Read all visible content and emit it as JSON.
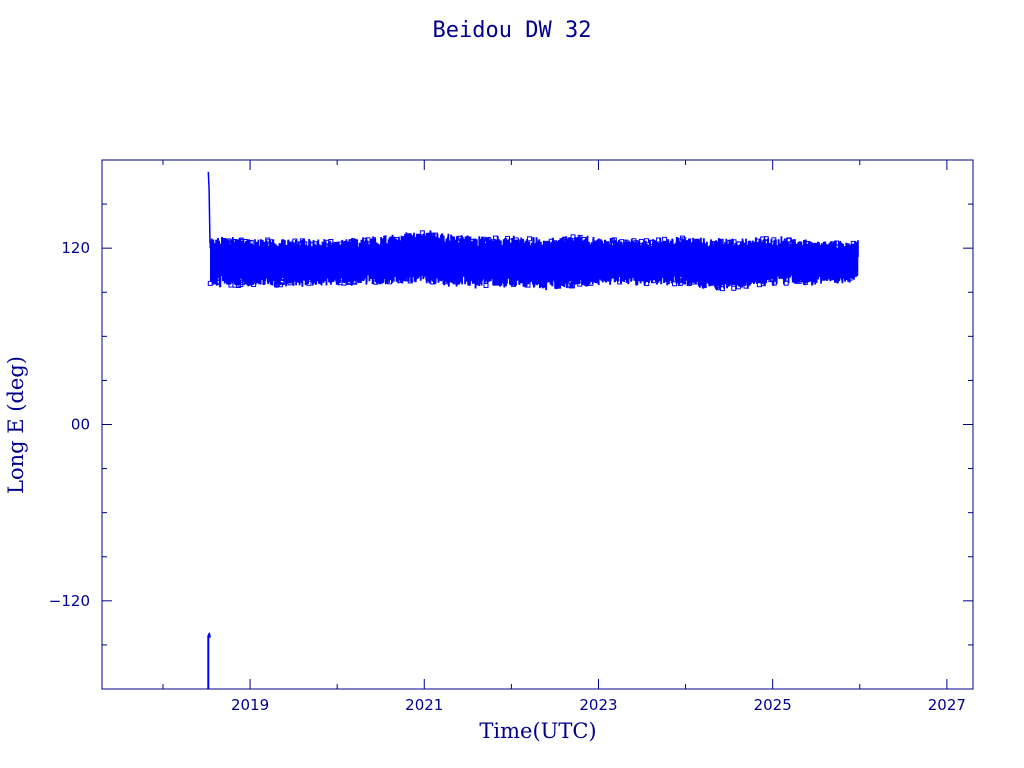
{
  "chart_data": {
    "type": "line",
    "title": "Beidou DW 32",
    "xlabel": "Time(UTC)",
    "ylabel": "Long E (deg)",
    "xlim": [
      2017.3,
      2027.3
    ],
    "ylim": [
      -180,
      180
    ],
    "x_ticks": [
      {
        "value": 2019,
        "label": "2019"
      },
      {
        "value": 2021,
        "label": "2021"
      },
      {
        "value": 2023,
        "label": "2023"
      },
      {
        "value": 2025,
        "label": "2025"
      },
      {
        "value": 2027,
        "label": "2027"
      }
    ],
    "x_minor_ticks": [
      2018,
      2020,
      2022,
      2024,
      2026
    ],
    "y_ticks": [
      {
        "value": 120,
        "label": "120"
      },
      {
        "value": 0,
        "label": "00"
      },
      {
        "value": -120,
        "label": "−120"
      }
    ],
    "y_minor_ticks": [
      150,
      90,
      60,
      30,
      -30,
      -60,
      -90,
      -150
    ],
    "grid": false,
    "legend": "none",
    "series": [
      {
        "color": "#0000ff",
        "initial_segment": [
          [
            2018.52,
            172
          ],
          [
            2018.53,
            160
          ],
          [
            2018.54,
            123
          ]
        ],
        "early_segment": [
          [
            2018.52,
            -180
          ],
          [
            2018.52,
            -144
          ],
          [
            2018.53,
            -143
          ],
          [
            2018.54,
            -145
          ],
          [
            2018.53,
            -142
          ]
        ],
        "band": {
          "x_range": [
            2018.54,
            2025.98
          ],
          "envelope_upper": [
            [
              2018.55,
              126
            ],
            [
              2019.0,
              126
            ],
            [
              2019.5,
              125
            ],
            [
              2020.0,
              125
            ],
            [
              2020.5,
              127
            ],
            [
              2021.0,
              131
            ],
            [
              2021.5,
              127
            ],
            [
              2022.0,
              127
            ],
            [
              2022.5,
              126
            ],
            [
              2022.7,
              128
            ],
            [
              2023.0,
              126
            ],
            [
              2023.5,
              125
            ],
            [
              2024.0,
              127
            ],
            [
              2024.5,
              125
            ],
            [
              2025.0,
              127
            ],
            [
              2025.5,
              124
            ],
            [
              2025.9,
              124
            ]
          ],
          "envelope_lower": [
            [
              2018.55,
              95
            ],
            [
              2019.0,
              94
            ],
            [
              2019.5,
              95
            ],
            [
              2020.0,
              96
            ],
            [
              2020.5,
              96
            ],
            [
              2021.0,
              97
            ],
            [
              2021.5,
              94
            ],
            [
              2022.0,
              95
            ],
            [
              2022.5,
              93
            ],
            [
              2023.0,
              96
            ],
            [
              2023.5,
              96
            ],
            [
              2024.0,
              95
            ],
            [
              2024.5,
              92
            ],
            [
              2025.0,
              96
            ],
            [
              2025.5,
              96
            ],
            [
              2025.9,
              98
            ]
          ],
          "end_value": 114
        }
      }
    ]
  }
}
